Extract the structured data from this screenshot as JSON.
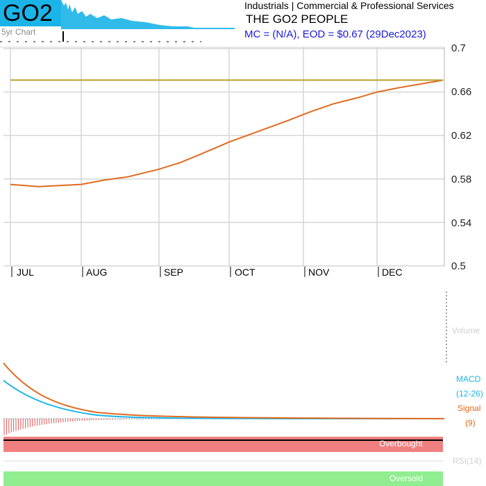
{
  "header": {
    "ticker": "GO2",
    "five_year_label": "5yr Chart",
    "sector": "Industrials | Commercial & Professional Services",
    "company": "THE GO2 PEOPLE",
    "market_cap_eod": "MC = (N/A), EOD = $0.67 (29Dec2023)"
  },
  "chart_data": {
    "type": "line",
    "title": "THE GO2 PEOPLE",
    "x": [
      "JUL",
      "AUG",
      "SEP",
      "OCT",
      "NOV",
      "DEC"
    ],
    "ylim": [
      0.5,
      0.7
    ],
    "y_ticks": [
      "0.7",
      "0.66",
      "0.62",
      "0.58",
      "0.54",
      "0.5"
    ],
    "series": [
      {
        "color": "#e06a1e",
        "points": [
          [
            0,
            0.575
          ],
          [
            0.4,
            0.573
          ],
          [
            1,
            0.575
          ],
          [
            1.3,
            0.579
          ],
          [
            1.6,
            0.582
          ],
          [
            2,
            0.589
          ],
          [
            2.3,
            0.595
          ],
          [
            2.6,
            0.603
          ],
          [
            3,
            0.614
          ],
          [
            3.4,
            0.624
          ],
          [
            3.8,
            0.634
          ],
          [
            4.1,
            0.642
          ],
          [
            4.4,
            0.649
          ],
          [
            4.75,
            0.655
          ],
          [
            5,
            0.66
          ],
          [
            5.3,
            0.664
          ],
          [
            5.9,
            0.671
          ]
        ]
      },
      {
        "color": "#b8a12c",
        "points": [
          [
            0,
            0.671
          ],
          [
            5.9,
            0.671
          ]
        ]
      }
    ],
    "grid": true
  },
  "indicators": {
    "volume_label": "Volume",
    "macd_label": "MACD",
    "macd_params": "(12-26)",
    "signal_label": "Signal",
    "signal_params": "(9)",
    "overbought_label": "Overbought",
    "rsi_label": "RSI(14)",
    "oversold_label": "Oversold",
    "colors": {
      "macd": "#1ab4e8",
      "signal": "#e06a1e",
      "overbought": "#f08080",
      "oversold": "#90ee90"
    }
  }
}
